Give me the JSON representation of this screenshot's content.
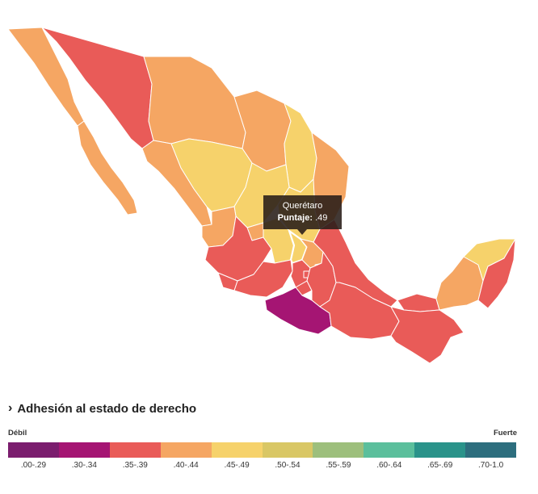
{
  "map": {
    "colors": {
      "c29": "#7b1d6e",
      "c34": "#a51573",
      "c39": "#e95b58",
      "c44": "#f5a663",
      "c49": "#f6d26b",
      "c54": "#d9c765",
      "c59": "#9dbf7c",
      "c64": "#5bbf9c",
      "c69": "#2a938a",
      "c10": "#2d6e7e",
      "highlight_outline": "#ffffff"
    }
  },
  "tooltip": {
    "state": "Querétaro",
    "score_label": "Puntaje:",
    "score_value": ".49"
  },
  "legend": {
    "title": "Adhesión al estado de derecho",
    "low_label": "Débil",
    "high_label": "Fuerte",
    "bins": [
      {
        "label": ".00-.29",
        "color": "#7b1d6e"
      },
      {
        "label": ".30-.34",
        "color": "#a51573"
      },
      {
        "label": ".35-.39",
        "color": "#e95b58"
      },
      {
        "label": ".40-.44",
        "color": "#f5a663"
      },
      {
        "label": ".45-.49",
        "color": "#f6d26b"
      },
      {
        "label": ".50-.54",
        "color": "#d9c765"
      },
      {
        "label": ".55-.59",
        "color": "#9dbf7c"
      },
      {
        "label": ".60-.64",
        "color": "#5bbf9c"
      },
      {
        "label": ".65-.69",
        "color": "#2a938a"
      },
      {
        "label": ".70-1.0",
        "color": "#2d6e7e"
      }
    ]
  }
}
